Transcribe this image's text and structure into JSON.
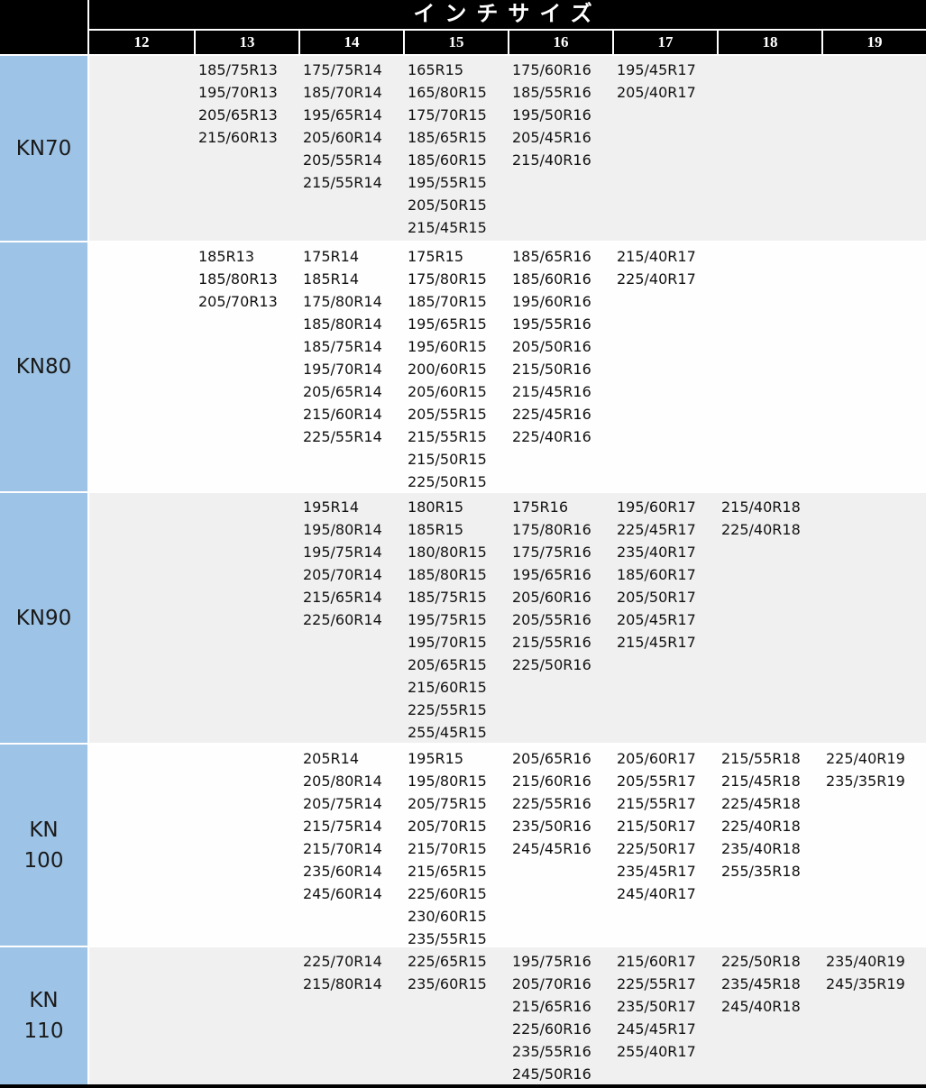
{
  "chart_data": {
    "type": "table",
    "title": "インチサイズ",
    "columns": [
      "12",
      "13",
      "14",
      "15",
      "16",
      "17",
      "18",
      "19"
    ],
    "row_labels": [
      "KN70",
      "KN80",
      "KN90",
      "KN100",
      "KN110"
    ],
    "rows": [
      {
        "label": "KN70",
        "label_lines": [
          "KN70"
        ],
        "cells": [
          [],
          [
            "185/75R13",
            "195/70R13",
            "205/65R13",
            "215/60R13"
          ],
          [
            "175/75R14",
            "185/70R14",
            "195/65R14",
            "205/60R14",
            "205/55R14",
            "215/55R14"
          ],
          [
            "165R15",
            "165/80R15",
            "175/70R15",
            "185/65R15",
            "185/60R15",
            "195/55R15",
            "205/50R15",
            "215/45R15"
          ],
          [
            "175/60R16",
            "185/55R16",
            "195/50R16",
            "205/45R16",
            "215/40R16"
          ],
          [
            "195/45R17",
            "205/40R17"
          ],
          [],
          []
        ]
      },
      {
        "label": "KN80",
        "label_lines": [
          "KN80"
        ],
        "cells": [
          [],
          [
            "185R13",
            "185/80R13",
            "205/70R13"
          ],
          [
            "175R14",
            "185R14",
            "175/80R14",
            "185/80R14",
            "185/75R14",
            "195/70R14",
            "205/65R14",
            "215/60R14",
            "225/55R14"
          ],
          [
            "175R15",
            "175/80R15",
            "185/70R15",
            "195/65R15",
            "195/60R15",
            "200/60R15",
            "205/60R15",
            "205/55R15",
            "215/55R15",
            "215/50R15",
            "225/50R15"
          ],
          [
            "185/65R16",
            "185/60R16",
            "195/60R16",
            "195/55R16",
            "205/50R16",
            "215/50R16",
            "215/45R16",
            "225/45R16",
            "225/40R16"
          ],
          [
            "215/40R17",
            "225/40R17"
          ],
          [],
          []
        ]
      },
      {
        "label": "KN90",
        "label_lines": [
          "KN90"
        ],
        "cells": [
          [],
          [],
          [
            "195R14",
            "195/80R14",
            "195/75R14",
            "205/70R14",
            "215/65R14",
            "225/60R14"
          ],
          [
            "180R15",
            "185R15",
            "180/80R15",
            "185/80R15",
            "185/75R15",
            "195/75R15",
            "195/70R15",
            "205/65R15",
            "215/60R15",
            "225/55R15",
            "255/45R15"
          ],
          [
            "175R16",
            "175/80R16",
            "175/75R16",
            "195/65R16",
            "205/60R16",
            "205/55R16",
            "215/55R16",
            "225/50R16"
          ],
          [
            "195/60R17",
            "225/45R17",
            "235/40R17",
            "185/60R17",
            "205/50R17",
            "205/45R17",
            "215/45R17"
          ],
          [
            "215/40R18",
            "225/40R18"
          ],
          []
        ]
      },
      {
        "label": "KN100",
        "label_lines": [
          "KN",
          "100"
        ],
        "cells": [
          [],
          [],
          [
            "205R14",
            "205/80R14",
            "205/75R14",
            "215/75R14",
            "215/70R14",
            "235/60R14",
            "245/60R14"
          ],
          [
            "195R15",
            "195/80R15",
            "205/75R15",
            "205/70R15",
            "215/70R15",
            "215/65R15",
            "225/60R15",
            "230/60R15",
            "235/55R15"
          ],
          [
            "205/65R16",
            "215/60R16",
            "225/55R16",
            "235/50R16",
            "245/45R16"
          ],
          [
            "205/60R17",
            "205/55R17",
            "215/55R17",
            "215/50R17",
            "225/50R17",
            "235/45R17",
            "245/40R17"
          ],
          [
            "215/55R18",
            "215/45R18",
            "225/45R18",
            "225/40R18",
            "235/40R18",
            "255/35R18"
          ],
          [
            "225/40R19",
            "235/35R19"
          ]
        ]
      },
      {
        "label": "KN110",
        "label_lines": [
          "KN",
          "110"
        ],
        "cells": [
          [],
          [],
          [
            "225/70R14",
            "215/80R14"
          ],
          [
            "225/65R15",
            "235/60R15"
          ],
          [
            "195/75R16",
            "205/70R16",
            "215/65R16",
            "225/60R16",
            "235/55R16",
            "245/50R16"
          ],
          [
            "215/60R17",
            "225/55R17",
            "235/50R17",
            "245/45R17",
            "255/40R17"
          ],
          [
            "225/50R18",
            "235/45R18",
            "245/40R18"
          ],
          [
            "235/40R19",
            "245/35R19"
          ]
        ]
      }
    ]
  },
  "colors": {
    "header_bg": "#000000",
    "header_text": "#ffffff",
    "row_label_bg": "#9dc3e6",
    "row_shade_gray": "#f0f0f0",
    "row_shade_white": "#fefefe",
    "body_text": "#111111",
    "separator": "#ffffff"
  }
}
